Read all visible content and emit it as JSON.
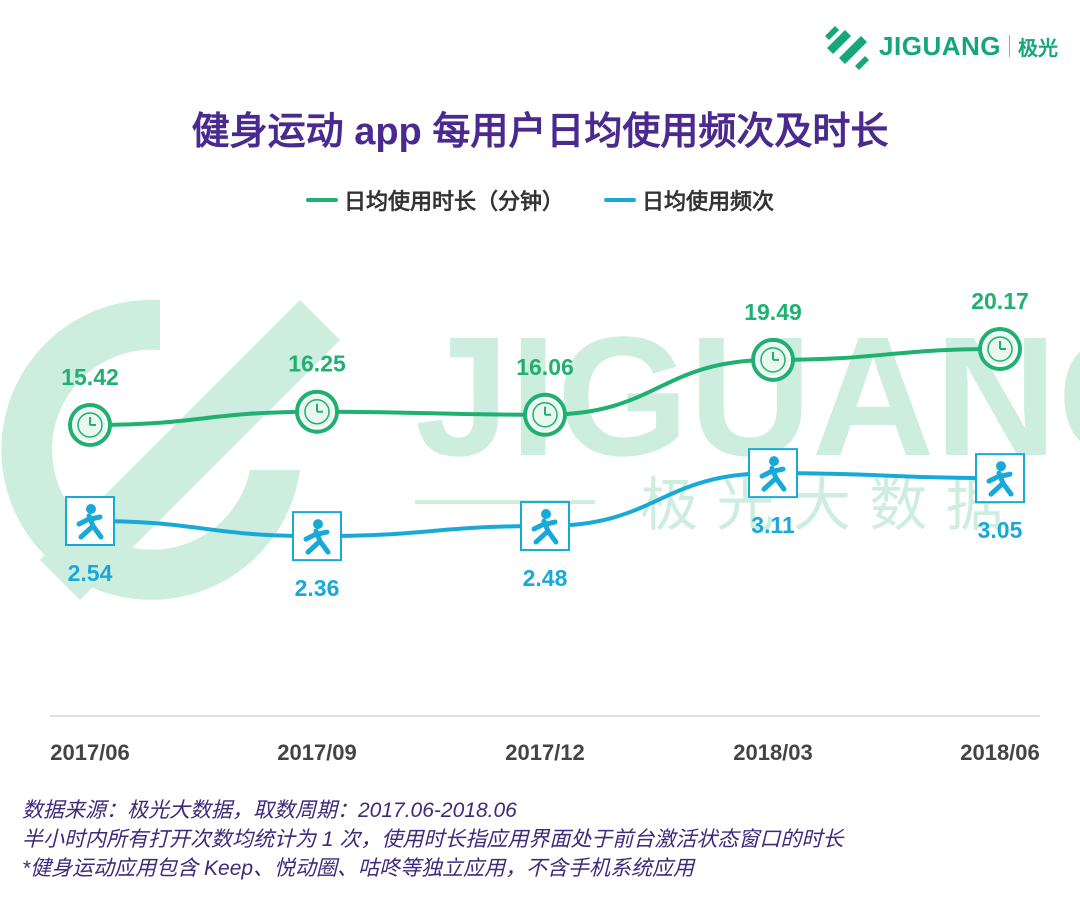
{
  "logo": {
    "brand": "JIGUANG",
    "cn": "极光",
    "icon": "jiguang-logo-icon"
  },
  "watermark": {
    "brand": "JIGUANG",
    "cn": "极 光 大 数 据"
  },
  "colors": {
    "green": "#1fb072",
    "blue": "#19a9d8",
    "title": "#4b2a8f",
    "notes": "#3d2a7a"
  },
  "chart_data": {
    "type": "line",
    "title": "健身运动 app 每用户日均使用频次及时长",
    "categories": [
      "2017/06",
      "2017/09",
      "2017/12",
      "2018/03",
      "2018/06"
    ],
    "series": [
      {
        "name": "日均使用时长（分钟）",
        "values": [
          15.42,
          16.25,
          16.06,
          19.49,
          20.17
        ],
        "labels": [
          "15.42",
          "16.25",
          "16.06",
          "19.49",
          "20.17"
        ],
        "marker": "clock-icon"
      },
      {
        "name": "日均使用频次",
        "values": [
          2.54,
          2.36,
          2.48,
          3.11,
          3.05
        ],
        "labels": [
          "2.54",
          "2.36",
          "2.48",
          "3.11",
          "3.05"
        ],
        "marker": "runner-icon"
      }
    ],
    "xlabel": "",
    "ylabel": ""
  },
  "notes": [
    "数据来源：极光大数据，取数周期：2017.06-2018.06",
    "半小时内所有打开次数均统计为 1 次，使用时长指应用界面处于前台激活状态窗口的时长",
    " *健身运动应用包含 Keep、悦动圈、咕咚等独立应用，不含手机系统应用"
  ]
}
